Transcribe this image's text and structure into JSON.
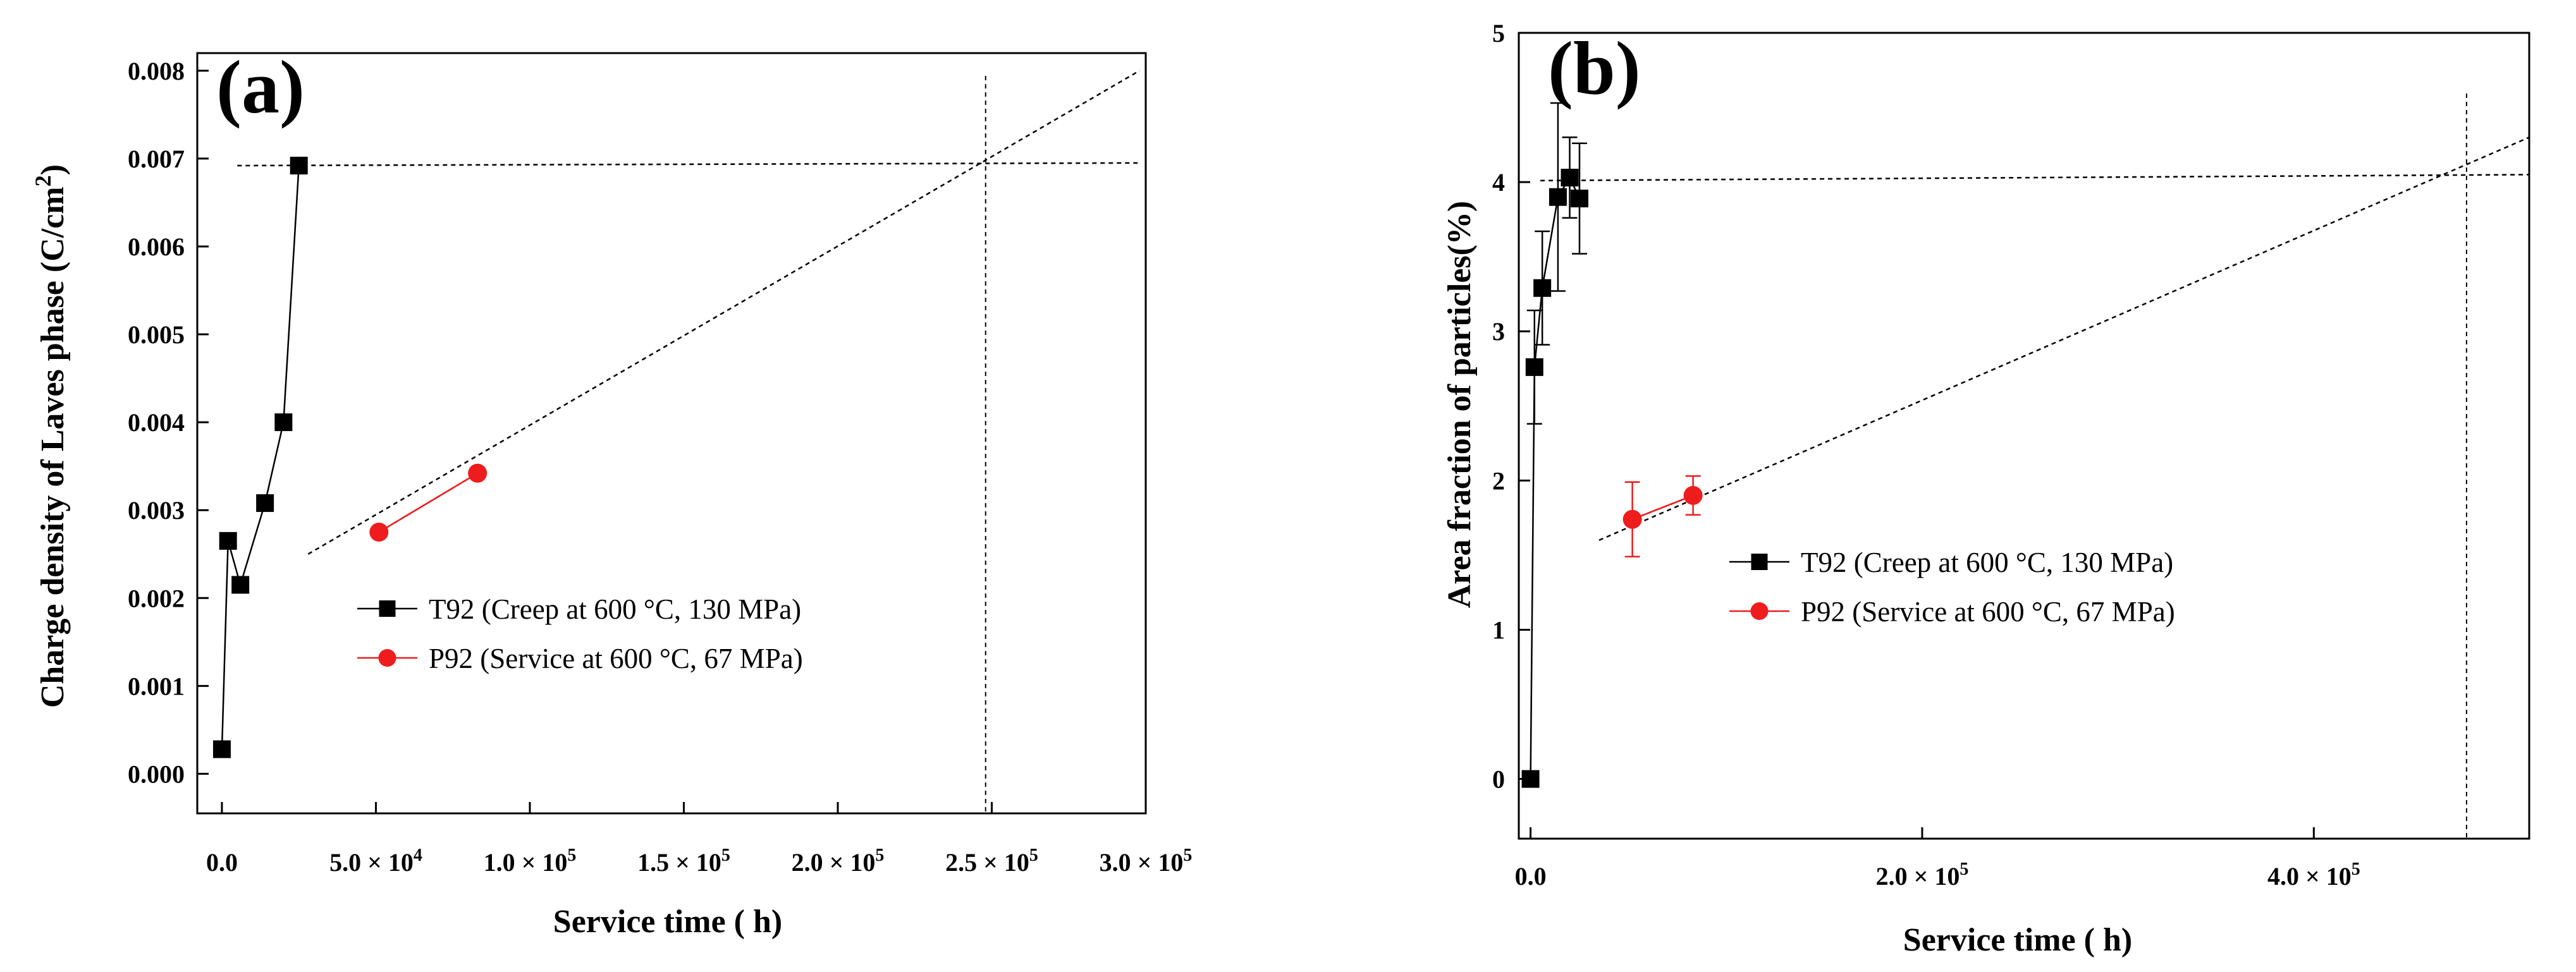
{
  "chart_data": [
    {
      "type": "line",
      "panel_label": "(a)",
      "xlabel": "Service time ( h)",
      "ylabel": "Charge density of Laves phase (C/cm",
      "ylabel_sup": "2",
      "ylabel_close": ")",
      "xlim": [
        -8000,
        300000
      ],
      "ylim": [
        -0.00045,
        0.0082
      ],
      "x_ticks": [
        0,
        50000,
        100000,
        150000,
        200000,
        250000,
        300000
      ],
      "x_tick_labels": [
        {
          "mant": "0.0",
          "exp": ""
        },
        {
          "mant": "5.0 × 10",
          "exp": "4"
        },
        {
          "mant": "1.0 × 10",
          "exp": "5"
        },
        {
          "mant": "1.5 × 10",
          "exp": "5"
        },
        {
          "mant": "2.0 × 10",
          "exp": "5"
        },
        {
          "mant": "2.5 × 10",
          "exp": "5"
        },
        {
          "mant": "3.0 × 10",
          "exp": "5"
        }
      ],
      "y_ticks": [
        0,
        0.001,
        0.002,
        0.003,
        0.004,
        0.005,
        0.006,
        0.007,
        0.008
      ],
      "y_tick_labels": [
        "0.000",
        "0.001",
        "0.002",
        "0.003",
        "0.004",
        "0.005",
        "0.006",
        "0.007",
        "0.008"
      ],
      "series": [
        {
          "name": "T92 (Creep at 600 °C, 130 MPa)",
          "marker": "square",
          "color": "#000000",
          "x": [
            0,
            2000,
            6000,
            14000,
            20000,
            25000
          ],
          "y": [
            0.00028,
            0.00265,
            0.00215,
            0.00308,
            0.004,
            0.00692
          ],
          "yerr": null
        },
        {
          "name": "P92 (Service at 600 °C, 67 MPa)",
          "marker": "circle",
          "color": "#ee1c1c",
          "x": [
            51000,
            83000
          ],
          "y": [
            0.00275,
            0.00342
          ],
          "yerr": null
        }
      ],
      "guides": [
        {
          "kind": "line",
          "from": [
            28000,
            0.0025
          ],
          "to": [
            298000,
            0.008
          ],
          "color": "#000000"
        },
        {
          "kind": "line",
          "from": [
            51000,
            0.00275
          ],
          "to": [
            83000,
            0.00342
          ],
          "color": "#ee1c1c"
        },
        {
          "kind": "line",
          "from": [
            5000,
            0.00692
          ],
          "to": [
            298000,
            0.00695
          ],
          "color": "#000000"
        },
        {
          "kind": "vline",
          "x": 248000,
          "color": "#000000"
        }
      ]
    },
    {
      "type": "line",
      "panel_label": "(b)",
      "xlabel": "Service time ( h)",
      "ylabel": "Area fraction of particles(%)",
      "ylabel_sup": "",
      "ylabel_close": "",
      "xlim": [
        -6000,
        510000
      ],
      "ylim": [
        -0.4,
        5.0
      ],
      "x_ticks": [
        0,
        200000,
        400000
      ],
      "x_tick_labels": [
        {
          "mant": "0.0",
          "exp": ""
        },
        {
          "mant": "2.0 × 10",
          "exp": "5"
        },
        {
          "mant": "4.0 × 10",
          "exp": "5"
        }
      ],
      "y_ticks": [
        0,
        1,
        2,
        3,
        4,
        5
      ],
      "y_tick_labels": [
        "0",
        "1",
        "2",
        "3",
        "4",
        "5"
      ],
      "series": [
        {
          "name": "T92 (Creep at 600 °C, 130 MPa)",
          "marker": "square",
          "color": "#000000",
          "x": [
            0,
            2000,
            6000,
            14000,
            20000,
            25000
          ],
          "y": [
            0,
            2.76,
            3.29,
            3.9,
            4.03,
            3.89
          ],
          "yerr": [
            0,
            0.38,
            0.38,
            0.63,
            0.27,
            0.37
          ]
        },
        {
          "name": "P92 (Service at 600 °C, 67 MPa)",
          "marker": "circle",
          "color": "#ee1c1c",
          "x": [
            52000,
            83000
          ],
          "y": [
            1.74,
            1.9
          ],
          "yerr": [
            0.25,
            0.13
          ]
        }
      ],
      "guides": [
        {
          "kind": "line",
          "from": [
            35000,
            1.6
          ],
          "to": [
            510000,
            4.3
          ],
          "color": "#000000"
        },
        {
          "kind": "line",
          "from": [
            52000,
            1.74
          ],
          "to": [
            83000,
            1.9
          ],
          "color": "#ee1c1c"
        },
        {
          "kind": "line",
          "from": [
            5000,
            4.01
          ],
          "to": [
            510000,
            4.05
          ],
          "color": "#000000"
        },
        {
          "kind": "vline",
          "x": 478000,
          "color": "#000000"
        }
      ]
    }
  ]
}
